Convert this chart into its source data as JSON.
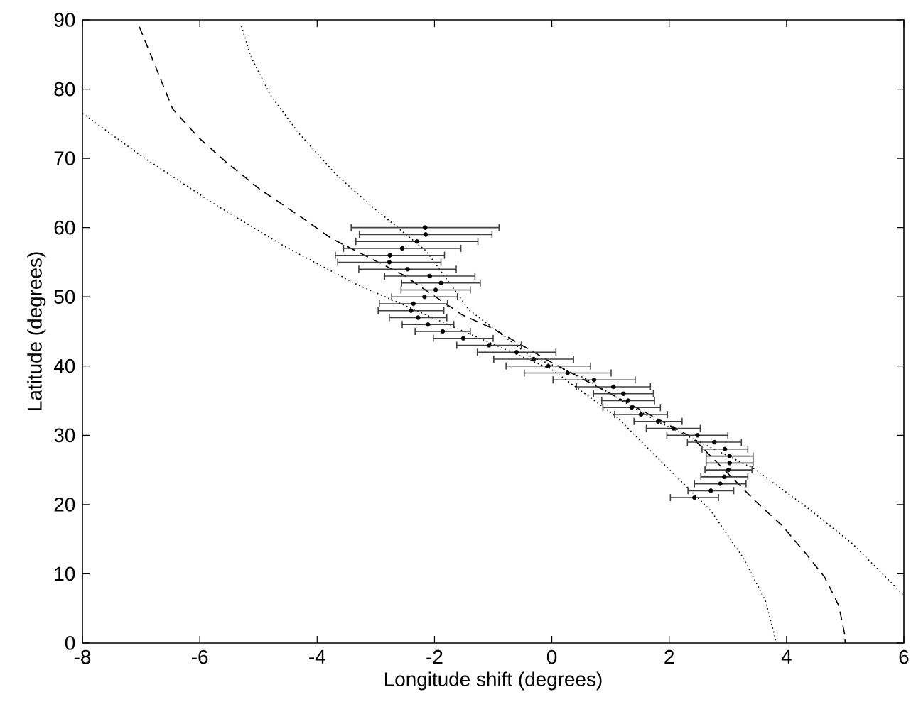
{
  "chart_data": {
    "type": "scatter",
    "xlabel": "Longitude shift (degrees)",
    "ylabel": "Latitude (degrees)",
    "xlim": [
      -8,
      6
    ],
    "ylim": [
      0,
      90
    ],
    "xticks": [
      -8,
      -6,
      -4,
      -2,
      0,
      2,
      4,
      6
    ],
    "yticks": [
      0,
      10,
      20,
      30,
      40,
      50,
      60,
      70,
      80,
      90
    ],
    "series": [
      {
        "type": "line",
        "color": "#000000",
        "line_style": "dotted",
        "marker": "none",
        "x": [
          -5.29,
          -5.13,
          -4.8,
          -4.32,
          -3.67,
          -3.03,
          -2.14,
          -1.41,
          -0.36,
          0.5,
          1.8,
          3.44,
          4.33,
          5.13,
          5.94,
          6.0
        ],
        "values": [
          89.1,
          84.7,
          79.2,
          73.7,
          67.6,
          62.8,
          56.6,
          48.1,
          41.4,
          38.5,
          32,
          25.2,
          19.7,
          14.3,
          7.4,
          6.8
        ]
      },
      {
        "type": "line",
        "color": "#000000",
        "line_style": "dashed",
        "marker": "none",
        "x": [
          -7.03,
          -6.46,
          -6.02,
          -5.53,
          -4.97,
          -4.32,
          -3.75,
          -2.54,
          -1.53,
          -1.0,
          0,
          1.0,
          2.39,
          3.48,
          3.92,
          4.33,
          4.65,
          4.89,
          4.99,
          5.0
        ],
        "values": [
          89,
          77.1,
          73,
          69.3,
          65.5,
          61.8,
          58.4,
          53.2,
          47.4,
          45.4,
          40.5,
          36,
          29.7,
          20.4,
          17,
          12.9,
          9.5,
          5.4,
          1.3,
          0
        ]
      },
      {
        "type": "line",
        "color": "#000000",
        "line_style": "dotted",
        "marker": "none",
        "x": [
          -8,
          -6.99,
          -5.77,
          -4.56,
          -3.35,
          -1.5,
          0,
          1.1,
          1.9,
          2.71,
          3.27,
          3.64,
          3.8,
          3.82
        ],
        "values": [
          76.5,
          70.3,
          63.5,
          57.3,
          51.9,
          45,
          39.5,
          32.7,
          25.9,
          19.1,
          12.2,
          6.1,
          1.0,
          0
        ]
      },
      {
        "color": "#000000",
        "marker": "circle",
        "x": [
          -2.16,
          -2.15,
          -2.3,
          -2.55,
          -2.76,
          -2.77,
          -2.46,
          -2.08,
          -1.89,
          -1.98,
          -2.17,
          -2.36,
          -2.4,
          -2.28,
          -2.11,
          -1.86,
          -1.51,
          -1.07,
          -0.6,
          -0.31,
          -0.06,
          0.27,
          0.72,
          1.05,
          1.22,
          1.3,
          1.36,
          1.52,
          1.81,
          2.07,
          2.48,
          2.77,
          2.95,
          3.03,
          3.03,
          3.01,
          2.94,
          2.87,
          2.71,
          2.43
        ],
        "values": [
          60,
          59,
          58,
          57,
          56,
          55,
          54,
          53,
          52,
          51,
          50,
          49,
          48,
          47,
          46,
          45,
          44,
          43,
          42,
          41,
          40,
          39,
          38,
          37,
          36,
          35,
          34,
          33,
          32,
          31,
          30,
          29,
          28,
          27,
          26,
          25,
          24,
          23,
          22,
          21
        ],
        "xerrors": [
          1.26,
          1.13,
          1.04,
          1.0,
          0.93,
          0.88,
          0.83,
          0.77,
          0.67,
          0.59,
          0.56,
          0.58,
          0.56,
          0.49,
          0.44,
          0.47,
          0.51,
          0.55,
          0.67,
          0.68,
          0.72,
          0.74,
          0.7,
          0.63,
          0.51,
          0.45,
          0.49,
          0.45,
          0.41,
          0.46,
          0.52,
          0.46,
          0.39,
          0.4,
          0.4,
          0.4,
          0.4,
          0.44,
          0.39,
          0.41
        ]
      }
    ]
  }
}
